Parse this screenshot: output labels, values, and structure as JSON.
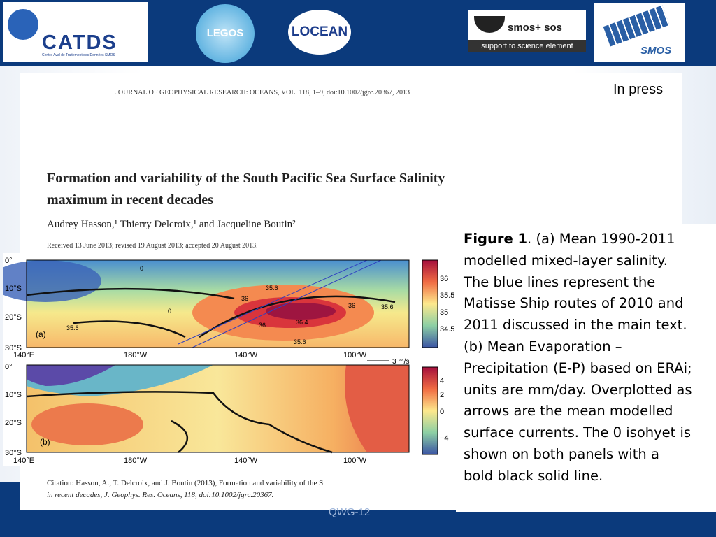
{
  "header": {
    "logos": [
      "CATDS",
      "Centre Aval de Traitement des Données SMOS",
      "LEGOS",
      "LOCEAN",
      "smos+ sos",
      "support to science element",
      "SMOS"
    ]
  },
  "paper": {
    "journal": "JOURNAL OF GEOPHYSICAL RESEARCH: OCEANS, VOL. 118, 1–9, doi:10.1002/jgrc.20367, 2013",
    "status": "In press",
    "title_lines": [
      "Formation and variability of the South Pacific Sea Surface Salinity",
      "maximum in recent decades"
    ],
    "authors": "Audrey Hasson,¹ Thierry Delcroix,¹ and Jacqueline Boutin²",
    "received": "Received 13 June 2013; revised 19 August 2013; accepted 20 August 2013.",
    "citation_lines": [
      "Citation:   Hasson, A., T. Delcroix, and J. Boutin (2013), Formation and variability of the S",
      "in recent decades, J. Geophys. Res. Oceans, 118, doi:10.1002/jgrc.20367."
    ]
  },
  "figure": {
    "lat_labels": [
      "0°",
      "10°S",
      "20°S",
      "30°S"
    ],
    "lon_labels": [
      "140°E",
      "180°W",
      "140°W",
      "100°W"
    ],
    "panel_a": {
      "label": "(a)",
      "colorbar": [
        "36",
        "35.5",
        "35",
        "34.5"
      ],
      "contours": [
        "0",
        "35.6",
        "36",
        "36.4",
        "36",
        "35.6",
        "36",
        "0",
        "35.6",
        "35.6"
      ]
    },
    "panel_b": {
      "label": "(b)",
      "colorbar": [
        "4",
        "2",
        "0",
        "−4"
      ],
      "vector_scale": "3 m/s"
    }
  },
  "caption": {
    "label": "Figure 1",
    "lines": [
      ". (a) Mean 1990-2011",
      "modelled mixed-layer salinity.",
      "The blue lines represent the",
      "Matisse Ship routes of 2010 and",
      "2011 discussed in the main text.",
      "(b) Mean Evaporation –",
      "Precipitation (E-P) based on ERAi;",
      "units are mm/day. Overplotted as",
      "arrows are the mean modelled",
      "surface currents. The 0 isohyet is",
      "shown on both panels with a",
      "bold black solid line."
    ]
  },
  "footer": {
    "text": "QWG-12"
  }
}
